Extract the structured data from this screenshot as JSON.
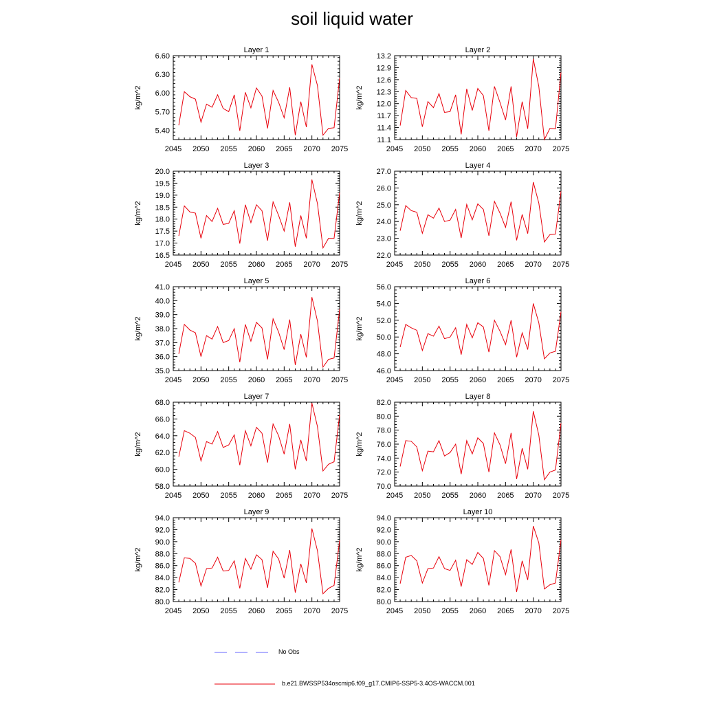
{
  "figure": {
    "title": "soil liquid water",
    "line_color": "#e8000b",
    "obs_line_color": "#6666ff"
  },
  "legend": {
    "entries": [
      {
        "label": "No Obs",
        "style": "dashed",
        "color": "#6666ff"
      },
      {
        "label": "b.e21.BWSSP534oscmip6.f09_g17.CMIP6-SSP5-3.4OS-WACCM.001",
        "style": "solid",
        "color": "#e8000b"
      }
    ]
  },
  "chart_data": [
    {
      "type": "line",
      "title": "Layer 1",
      "ylabel": "kg/m^2",
      "xlim": [
        2045,
        2075
      ],
      "ylim": [
        5.25,
        6.6
      ],
      "xticks": [
        2045,
        2050,
        2055,
        2060,
        2065,
        2070,
        2075
      ],
      "yticks": [
        "5.40",
        "5.70",
        "6.00",
        "6.30",
        "6.60"
      ],
      "series": [
        {
          "x": [
            2046,
            2047,
            2048,
            2049,
            2050,
            2051,
            2052,
            2053,
            2054,
            2055,
            2056,
            2057,
            2058,
            2059,
            2060,
            2061,
            2062,
            2063,
            2064,
            2065,
            2066,
            2067,
            2068,
            2069,
            2070,
            2071,
            2072,
            2073,
            2074,
            2075
          ],
          "values": [
            5.48,
            6.02,
            5.94,
            5.9,
            5.53,
            5.82,
            5.77,
            5.97,
            5.75,
            5.7,
            5.97,
            5.39,
            6.01,
            5.76,
            6.08,
            5.95,
            5.43,
            6.04,
            5.85,
            5.6,
            6.09,
            5.32,
            5.86,
            5.45,
            6.46,
            6.12,
            5.32,
            5.43,
            5.44,
            6.24
          ]
        }
      ]
    },
    {
      "type": "line",
      "title": "Layer 2",
      "ylabel": "kg/m^2",
      "xlim": [
        2045,
        2075
      ],
      "ylim": [
        11.1,
        13.2
      ],
      "xticks": [
        2045,
        2050,
        2055,
        2060,
        2065,
        2070,
        2075
      ],
      "yticks": [
        "11.1",
        "11.4",
        "11.7",
        "12.0",
        "12.3",
        "12.6",
        "12.9",
        "13.2"
      ],
      "series": [
        {
          "x": [
            2046,
            2047,
            2048,
            2049,
            2050,
            2051,
            2052,
            2053,
            2054,
            2055,
            2056,
            2057,
            2058,
            2059,
            2060,
            2061,
            2062,
            2063,
            2064,
            2065,
            2066,
            2067,
            2068,
            2069,
            2070,
            2071,
            2072,
            2073,
            2074,
            2075
          ],
          "values": [
            11.45,
            12.33,
            12.15,
            12.13,
            11.42,
            12.05,
            11.9,
            12.25,
            11.78,
            11.8,
            12.22,
            11.23,
            12.37,
            11.83,
            12.38,
            12.2,
            11.32,
            12.43,
            12.03,
            11.59,
            12.43,
            11.17,
            12.05,
            11.37,
            13.12,
            12.43,
            11.1,
            11.38,
            11.37,
            12.78
          ]
        }
      ]
    },
    {
      "type": "line",
      "title": "Layer 3",
      "ylabel": "kg/m^2",
      "xlim": [
        2045,
        2075
      ],
      "ylim": [
        16.5,
        20.0
      ],
      "xticks": [
        2045,
        2050,
        2055,
        2060,
        2065,
        2070,
        2075
      ],
      "yticks": [
        "16.5",
        "17.0",
        "17.5",
        "18.0",
        "18.5",
        "19.0",
        "19.5",
        "20.0"
      ],
      "series": [
        {
          "x": [
            2046,
            2047,
            2048,
            2049,
            2050,
            2051,
            2052,
            2053,
            2054,
            2055,
            2056,
            2057,
            2058,
            2059,
            2060,
            2061,
            2062,
            2063,
            2064,
            2065,
            2066,
            2067,
            2068,
            2069,
            2070,
            2071,
            2072,
            2073,
            2074,
            2075
          ],
          "values": [
            17.3,
            18.55,
            18.3,
            18.25,
            17.2,
            18.15,
            17.9,
            18.45,
            17.78,
            17.82,
            18.35,
            16.98,
            18.6,
            17.85,
            18.6,
            18.35,
            17.1,
            18.72,
            18.15,
            17.5,
            18.7,
            16.85,
            18.15,
            17.2,
            19.65,
            18.65,
            16.8,
            17.2,
            17.2,
            19.1
          ]
        }
      ]
    },
    {
      "type": "line",
      "title": "Layer 4",
      "ylabel": "kg/m^2",
      "xlim": [
        2045,
        2075
      ],
      "ylim": [
        22.0,
        27.0
      ],
      "xticks": [
        2045,
        2050,
        2055,
        2060,
        2065,
        2070,
        2075
      ],
      "yticks": [
        "22.0",
        "23.0",
        "24.0",
        "25.0",
        "26.0",
        "27.0"
      ],
      "series": [
        {
          "x": [
            2046,
            2047,
            2048,
            2049,
            2050,
            2051,
            2052,
            2053,
            2054,
            2055,
            2056,
            2057,
            2058,
            2059,
            2060,
            2061,
            2062,
            2063,
            2064,
            2065,
            2066,
            2067,
            2068,
            2069,
            2070,
            2071,
            2072,
            2073,
            2074,
            2075
          ],
          "values": [
            23.45,
            24.95,
            24.65,
            24.55,
            23.3,
            24.4,
            24.2,
            24.8,
            24.0,
            24.08,
            24.72,
            23.02,
            25.02,
            24.1,
            25.05,
            24.72,
            23.15,
            25.2,
            24.5,
            23.65,
            25.18,
            22.88,
            24.42,
            23.28,
            26.35,
            25.1,
            22.78,
            23.22,
            23.25,
            25.8
          ]
        }
      ]
    },
    {
      "type": "line",
      "title": "Layer 5",
      "ylabel": "kg/m^2",
      "xlim": [
        2045,
        2075
      ],
      "ylim": [
        35.0,
        41.0
      ],
      "xticks": [
        2045,
        2050,
        2055,
        2060,
        2065,
        2070,
        2075
      ],
      "yticks": [
        "35.0",
        "36.0",
        "37.0",
        "38.0",
        "39.0",
        "40.0",
        "41.0"
      ],
      "series": [
        {
          "x": [
            2046,
            2047,
            2048,
            2049,
            2050,
            2051,
            2052,
            2053,
            2054,
            2055,
            2056,
            2057,
            2058,
            2059,
            2060,
            2061,
            2062,
            2063,
            2064,
            2065,
            2066,
            2067,
            2068,
            2069,
            2070,
            2071,
            2072,
            2073,
            2074,
            2075
          ],
          "values": [
            36.2,
            38.3,
            37.9,
            37.7,
            36.0,
            37.5,
            37.25,
            38.15,
            37.0,
            37.15,
            38.0,
            35.6,
            38.3,
            37.1,
            38.45,
            38.05,
            35.8,
            38.7,
            37.75,
            36.5,
            38.65,
            35.4,
            37.6,
            35.95,
            40.25,
            38.55,
            35.25,
            35.8,
            35.9,
            39.4
          ]
        }
      ]
    },
    {
      "type": "line",
      "title": "Layer 6",
      "ylabel": "kg/m^2",
      "xlim": [
        2045,
        2075
      ],
      "ylim": [
        46.0,
        56.0
      ],
      "xticks": [
        2045,
        2050,
        2055,
        2060,
        2065,
        2070,
        2075
      ],
      "yticks": [
        "46.0",
        "48.0",
        "50.0",
        "52.0",
        "54.0",
        "56.0"
      ],
      "series": [
        {
          "x": [
            2046,
            2047,
            2048,
            2049,
            2050,
            2051,
            2052,
            2053,
            2054,
            2055,
            2056,
            2057,
            2058,
            2059,
            2060,
            2061,
            2062,
            2063,
            2064,
            2065,
            2066,
            2067,
            2068,
            2069,
            2070,
            2071,
            2072,
            2073,
            2074,
            2075
          ],
          "values": [
            48.8,
            51.5,
            51.1,
            50.8,
            48.4,
            50.4,
            50.1,
            51.3,
            49.8,
            50.0,
            51.1,
            47.9,
            51.5,
            49.9,
            51.7,
            51.2,
            48.2,
            52.0,
            50.7,
            49.1,
            52.0,
            47.6,
            50.5,
            48.5,
            54.0,
            51.7,
            47.4,
            48.1,
            48.3,
            53.0
          ]
        }
      ]
    },
    {
      "type": "line",
      "title": "Layer 7",
      "ylabel": "kg/m^2",
      "xlim": [
        2045,
        2075
      ],
      "ylim": [
        58.0,
        68.0
      ],
      "xticks": [
        2045,
        2050,
        2055,
        2060,
        2065,
        2070,
        2075
      ],
      "yticks": [
        "58.0",
        "60.0",
        "62.0",
        "64.0",
        "66.0",
        "68.0"
      ],
      "series": [
        {
          "x": [
            2046,
            2047,
            2048,
            2049,
            2050,
            2051,
            2052,
            2053,
            2054,
            2055,
            2056,
            2057,
            2058,
            2059,
            2060,
            2061,
            2062,
            2063,
            2064,
            2065,
            2066,
            2067,
            2068,
            2069,
            2070,
            2071,
            2072,
            2073,
            2074,
            2075
          ],
          "values": [
            61.5,
            64.6,
            64.3,
            63.8,
            61.0,
            63.3,
            63.0,
            64.5,
            62.6,
            62.9,
            64.1,
            60.5,
            64.6,
            62.8,
            65.0,
            64.3,
            60.8,
            65.4,
            64.0,
            61.8,
            65.4,
            60.0,
            63.5,
            61.0,
            67.9,
            65.1,
            59.8,
            60.6,
            60.9,
            66.5
          ]
        }
      ]
    },
    {
      "type": "line",
      "title": "Layer 8",
      "ylabel": "kg/m^2",
      "xlim": [
        2045,
        2075
      ],
      "ylim": [
        70.0,
        82.0
      ],
      "xticks": [
        2045,
        2050,
        2055,
        2060,
        2065,
        2070,
        2075
      ],
      "yticks": [
        "70.0",
        "72.0",
        "74.0",
        "76.0",
        "78.0",
        "80.0",
        "82.0"
      ],
      "series": [
        {
          "x": [
            2046,
            2047,
            2048,
            2049,
            2050,
            2051,
            2052,
            2053,
            2054,
            2055,
            2056,
            2057,
            2058,
            2059,
            2060,
            2061,
            2062,
            2063,
            2064,
            2065,
            2066,
            2067,
            2068,
            2069,
            2070,
            2071,
            2072,
            2073,
            2074,
            2075
          ],
          "values": [
            72.8,
            76.5,
            76.4,
            75.6,
            72.2,
            75.0,
            74.9,
            76.5,
            74.3,
            74.8,
            76.0,
            71.7,
            76.5,
            74.6,
            76.9,
            76.1,
            72.0,
            77.6,
            75.9,
            73.2,
            77.6,
            71.0,
            75.4,
            72.4,
            80.7,
            77.3,
            70.9,
            72.0,
            72.3,
            79.0
          ]
        }
      ]
    },
    {
      "type": "line",
      "title": "Layer 9",
      "ylabel": "kg/m^2",
      "xlim": [
        2045,
        2075
      ],
      "ylim": [
        80.0,
        94.0
      ],
      "xticks": [
        2045,
        2050,
        2055,
        2060,
        2065,
        2070,
        2075
      ],
      "yticks": [
        "80.0",
        "82.0",
        "84.0",
        "86.0",
        "88.0",
        "90.0",
        "92.0",
        "94.0"
      ],
      "series": [
        {
          "x": [
            2046,
            2047,
            2048,
            2049,
            2050,
            2051,
            2052,
            2053,
            2054,
            2055,
            2056,
            2057,
            2058,
            2059,
            2060,
            2061,
            2062,
            2063,
            2064,
            2065,
            2066,
            2067,
            2068,
            2069,
            2070,
            2071,
            2072,
            2073,
            2074,
            2075
          ],
          "values": [
            83.2,
            87.3,
            87.2,
            86.4,
            82.6,
            85.5,
            85.6,
            87.4,
            85.1,
            85.2,
            86.8,
            82.2,
            87.2,
            85.4,
            87.8,
            87.0,
            82.3,
            88.4,
            87.1,
            83.9,
            88.6,
            81.5,
            86.3,
            83.1,
            92.2,
            88.5,
            81.3,
            82.2,
            82.7,
            90.2
          ]
        }
      ]
    },
    {
      "type": "line",
      "title": "Layer 10",
      "ylabel": "kg/m^2",
      "xlim": [
        2045,
        2075
      ],
      "ylim": [
        80.0,
        94.0
      ],
      "xticks": [
        2045,
        2050,
        2055,
        2060,
        2065,
        2070,
        2075
      ],
      "yticks": [
        "80.0",
        "82.0",
        "84.0",
        "86.0",
        "88.0",
        "90.0",
        "92.0",
        "94.0"
      ],
      "series": [
        {
          "x": [
            2046,
            2047,
            2048,
            2049,
            2050,
            2051,
            2052,
            2053,
            2054,
            2055,
            2056,
            2057,
            2058,
            2059,
            2060,
            2061,
            2062,
            2063,
            2064,
            2065,
            2066,
            2067,
            2068,
            2069,
            2070,
            2071,
            2072,
            2073,
            2074,
            2075
          ],
          "values": [
            83.0,
            87.4,
            87.7,
            86.8,
            83.1,
            85.5,
            85.6,
            87.5,
            85.5,
            85.2,
            86.9,
            82.5,
            87.0,
            86.2,
            88.2,
            87.2,
            82.7,
            88.5,
            87.5,
            84.5,
            88.7,
            81.6,
            86.8,
            83.6,
            92.6,
            89.8,
            82.1,
            82.8,
            83.1,
            90.3
          ]
        }
      ]
    }
  ]
}
